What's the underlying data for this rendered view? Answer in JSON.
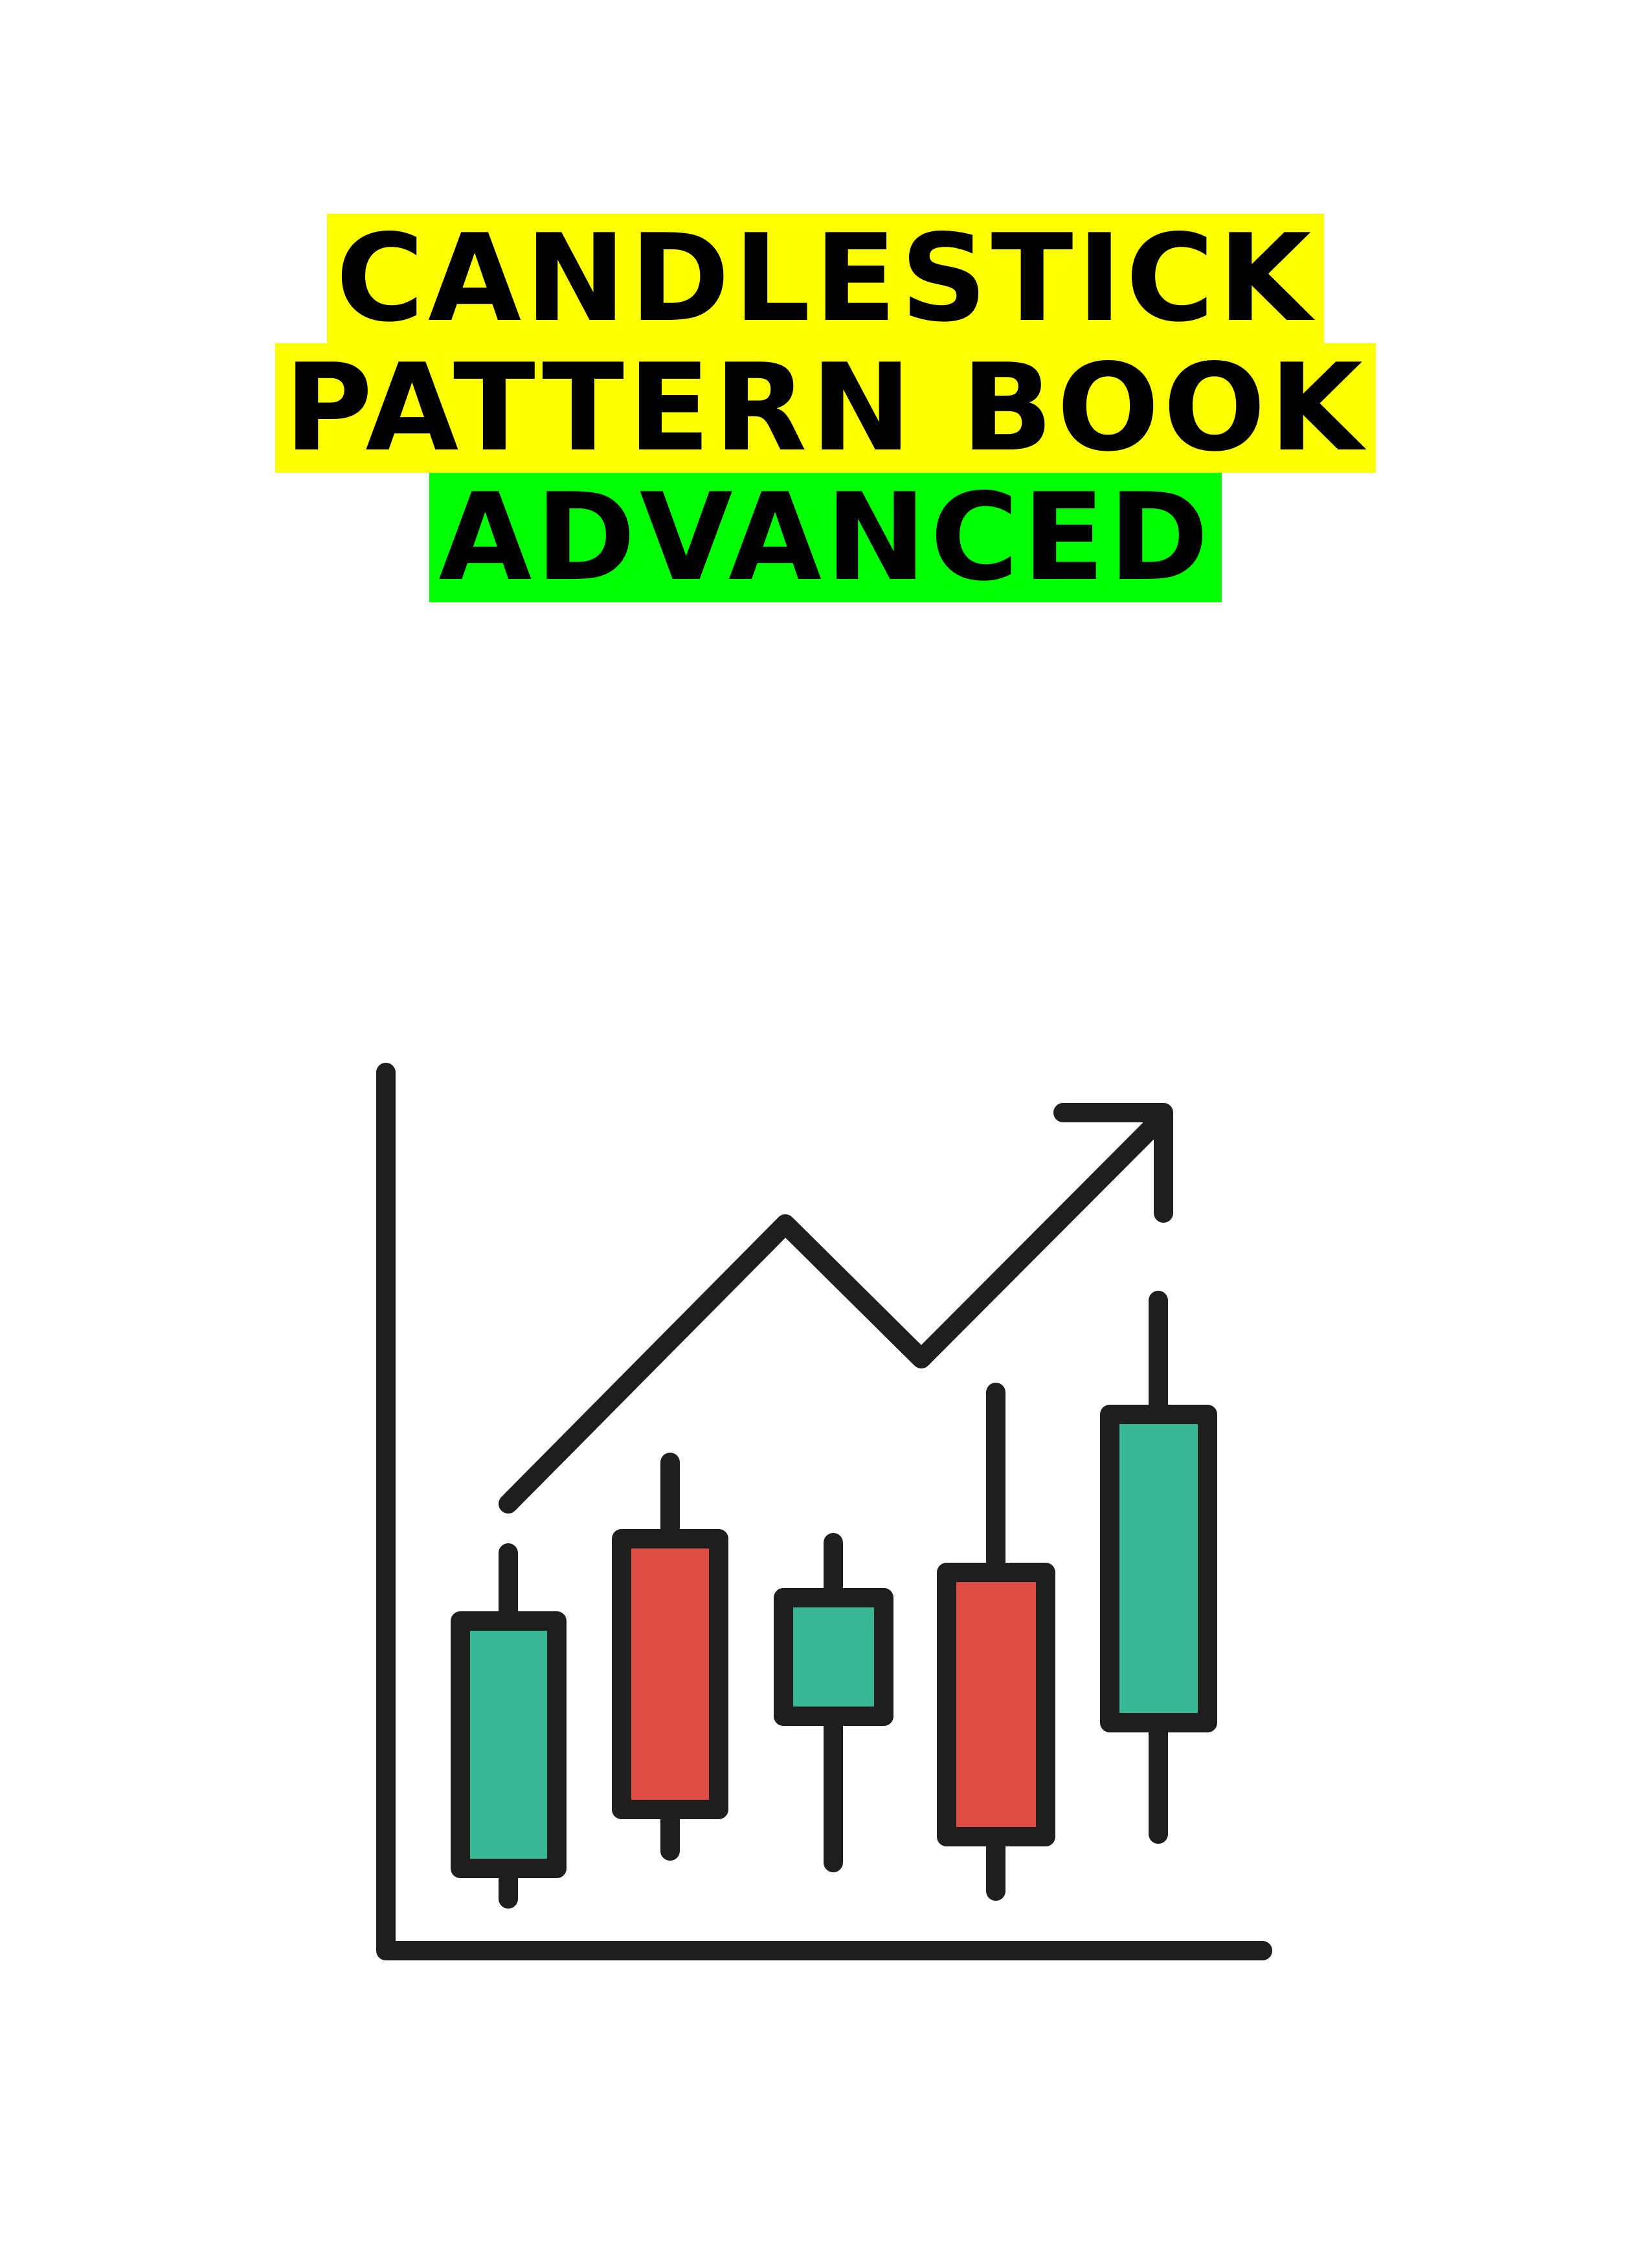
{
  "cover": {
    "title_line_1": "CANDLESTICK",
    "title_line_2": "PATTERN BOOK",
    "title_line_3": "ADVANCED"
  },
  "colors": {
    "highlight_yellow": "#ffff00",
    "highlight_green": "#00ff00",
    "outline": "#1e1e1e",
    "bull_fill": "#38b795",
    "bear_fill": "#e04b43",
    "background": "#ffffff"
  },
  "illustration": {
    "icon": "candlestick-chart-uptrend-icon",
    "candles": [
      {
        "direction": "bullish"
      },
      {
        "direction": "bearish"
      },
      {
        "direction": "bullish"
      },
      {
        "direction": "bearish"
      },
      {
        "direction": "bullish"
      }
    ],
    "trend": "up"
  }
}
